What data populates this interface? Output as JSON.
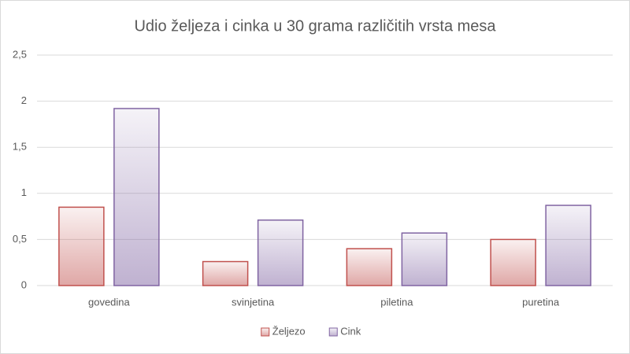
{
  "chart_data": {
    "type": "bar",
    "title": "Udio željeza  i cinka  u 30 grama  različitih  vrsta mesa",
    "categories": [
      "govedina",
      "svinjetina",
      "piletina",
      "puretina"
    ],
    "series": [
      {
        "name": "Željezo",
        "color": "#c0504d",
        "values": [
          0.85,
          0.26,
          0.4,
          0.5
        ]
      },
      {
        "name": "Cink",
        "color": "#8064a2",
        "values": [
          1.92,
          0.71,
          0.57,
          0.87
        ]
      }
    ],
    "ylim": [
      0,
      2.5
    ],
    "yticks": [
      0,
      {
        "value": 0.5,
        "label": "0,5"
      },
      1,
      {
        "value": 1.5,
        "label": "1,5"
      },
      2,
      {
        "value": 2.5,
        "label": "2,5"
      }
    ],
    "grid": true,
    "legend": "bottom"
  }
}
